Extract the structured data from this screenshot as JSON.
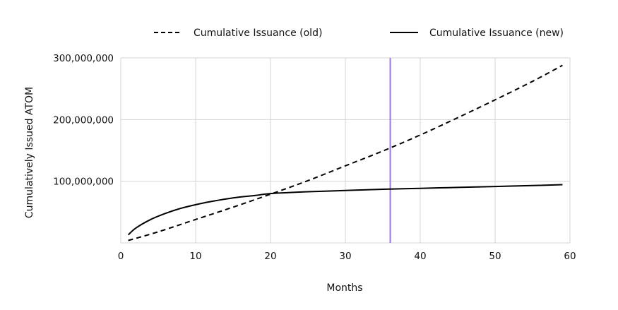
{
  "chart_data": {
    "type": "line",
    "xlabel": "Months",
    "ylabel": "Cumulatively Issued ATOM",
    "xlim": [
      0,
      60
    ],
    "ylim": [
      0,
      300000000
    ],
    "x_ticks": [
      0,
      10,
      20,
      30,
      40,
      50,
      60
    ],
    "x_tick_labels": [
      "0",
      "10",
      "20",
      "30",
      "40",
      "50",
      "60"
    ],
    "y_ticks": [
      100000000,
      200000000,
      300000000
    ],
    "y_tick_labels": [
      "100,000,000",
      "200,000,000",
      "300,000,000"
    ],
    "grid": true,
    "legend_position": "top",
    "highlight_x": 36,
    "highlight_color": "#a87ee6",
    "series": [
      {
        "name": "Cumulative Issuance (old)",
        "style": "dashed",
        "color": "#000000",
        "x": [
          1,
          5,
          10,
          15,
          20,
          25,
          30,
          35,
          40,
          45,
          50,
          55,
          59
        ],
        "y": [
          4000000,
          18000000,
          38000000,
          58000000,
          79000000,
          101000000,
          125000000,
          149000000,
          175000000,
          203000000,
          232000000,
          262000000,
          288000000
        ]
      },
      {
        "name": "Cumulative Issuance (new)",
        "style": "solid",
        "color": "#000000",
        "x": [
          1,
          2,
          4,
          6,
          8,
          10,
          12,
          15,
          18,
          20,
          25,
          30,
          35,
          40,
          45,
          50,
          55,
          59
        ],
        "y": [
          13000000,
          24000000,
          38000000,
          48000000,
          56000000,
          62000000,
          67000000,
          73000000,
          77000000,
          80000000,
          83000000,
          85000000,
          87000000,
          88500000,
          90000000,
          91500000,
          93000000,
          94500000
        ]
      }
    ]
  }
}
